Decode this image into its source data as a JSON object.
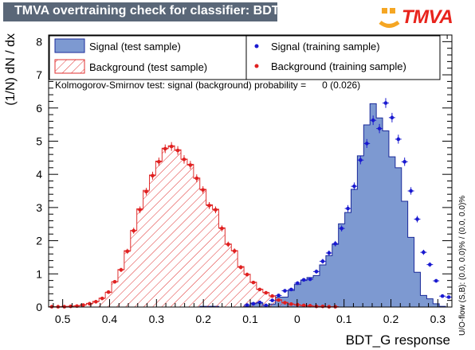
{
  "title": "TMVA overtraining check for classifier: BDT_G",
  "logo_text": "TMVA",
  "ks_text": "Kolmogorov-Smirnov test: signal (background) probability =      0 (0.026)",
  "overflow_text": "U/O-flow (S,B): (0.0, 0.0)% / (0.0, 0.0)%",
  "chart_data": {
    "type": "histogram",
    "xlabel": "BDT_G response",
    "ylabel": "(1/N) dN / dx",
    "xlim": [
      -0.53,
      0.33
    ],
    "ylim": [
      0,
      8.2
    ],
    "x_ticks": [
      -0.5,
      -0.4,
      -0.3,
      -0.2,
      -0.1,
      0,
      0.1,
      0.2,
      0.3
    ],
    "x_tick_labels": [
      "0.5",
      "0.4",
      "0.3",
      "0.2",
      "0.1",
      "0",
      "0.1",
      "0.2",
      "0.3"
    ],
    "y_ticks": [
      0,
      1,
      2,
      3,
      4,
      5,
      6,
      7,
      8
    ],
    "y_tick_labels": [
      "0",
      "1",
      "2",
      "3",
      "4",
      "5",
      "6",
      "7",
      "8"
    ],
    "bin_edges": [
      -0.53,
      -0.5166,
      -0.5031,
      -0.4897,
      -0.4763,
      -0.4628,
      -0.4494,
      -0.4359,
      -0.4225,
      -0.4091,
      -0.3956,
      -0.3822,
      -0.3688,
      -0.3553,
      -0.3419,
      -0.3284,
      -0.315,
      -0.3016,
      -0.2881,
      -0.2747,
      -0.2613,
      -0.2478,
      -0.2344,
      -0.2209,
      -0.2075,
      -0.1941,
      -0.1806,
      -0.1672,
      -0.1538,
      -0.1403,
      -0.1269,
      -0.1134,
      -0.1,
      -0.0866,
      -0.0731,
      -0.0597,
      -0.0463,
      -0.0328,
      -0.0194,
      -0.0059,
      0.0075,
      0.0209,
      0.0344,
      0.0478,
      0.0613,
      0.0747,
      0.0881,
      0.1016,
      0.115,
      0.1284,
      0.1419,
      0.1553,
      0.1688,
      0.1822,
      0.1956,
      0.2091,
      0.2225,
      0.2359,
      0.2494,
      0.2628,
      0.2763,
      0.2897,
      0.3031,
      0.3166,
      0.33
    ],
    "series": [
      {
        "name": "Signal (test sample)",
        "style": "filled",
        "color": "#7d99d1",
        "edge": "#1a2a9a",
        "values": [
          0,
          0,
          0,
          0,
          0,
          0,
          0,
          0,
          0,
          0,
          0,
          0,
          0,
          0,
          0,
          0,
          0,
          0,
          0,
          0,
          0,
          0,
          0,
          0,
          0.02,
          0.02,
          0.02,
          0,
          0,
          0,
          0,
          0.02,
          0.12,
          0.12,
          0.05,
          0.09,
          0.3,
          0.3,
          0.5,
          0.68,
          0.8,
          0.89,
          0.95,
          1.27,
          1.55,
          1.89,
          2.51,
          2.85,
          3.55,
          4.56,
          5.49,
          6.13,
          5.7,
          5.31,
          4.53,
          4.2,
          3.19,
          2.1,
          1.05,
          0.35,
          0.25,
          0.1,
          0.02,
          0
        ]
      },
      {
        "name": "Background (test sample)",
        "style": "hatched",
        "color": "#e03030",
        "values": [
          0.01,
          0.01,
          0.02,
          0.02,
          0.04,
          0.07,
          0.11,
          0.17,
          0.27,
          0.44,
          0.76,
          1.13,
          1.7,
          2.31,
          2.96,
          3.52,
          3.98,
          4.4,
          4.79,
          4.86,
          4.74,
          4.46,
          4.3,
          3.89,
          3.55,
          3.08,
          2.95,
          2.39,
          1.9,
          1.7,
          1.22,
          0.99,
          0.75,
          0.54,
          0.44,
          0.34,
          0.22,
          0.14,
          0.09,
          0.06,
          0.04,
          0.03,
          0.02,
          0.02,
          0.01,
          0.01,
          0,
          0,
          0,
          0,
          0,
          0,
          0,
          0,
          0,
          0,
          0,
          0,
          0,
          0,
          0,
          0,
          0,
          0
        ]
      },
      {
        "name": "Signal (training sample)",
        "style": "points",
        "color": "#1a1ad0",
        "values": [
          0,
          0,
          0,
          0,
          0,
          0,
          0,
          0,
          0,
          0,
          0,
          0,
          0,
          0,
          0,
          0,
          0,
          0,
          0,
          0,
          0,
          0,
          0,
          0,
          0,
          0,
          0,
          0,
          0,
          0,
          0,
          0.06,
          0.1,
          0.14,
          0.05,
          0.2,
          0.35,
          0.49,
          0.53,
          0.72,
          0.82,
          0.84,
          1.07,
          1.38,
          1.63,
          1.91,
          2.37,
          2.97,
          3.64,
          4.43,
          4.93,
          5.63,
          5.38,
          6.15,
          5.71,
          5.06,
          4.38,
          3.5,
          2.65,
          1.65,
          1.28,
          0.79,
          0.33,
          0.3
        ]
      },
      {
        "name": "Background (training sample)",
        "style": "points",
        "color": "#e02020",
        "values": [
          0.01,
          0.01,
          0.01,
          0.02,
          0.03,
          0.06,
          0.1,
          0.16,
          0.26,
          0.45,
          0.76,
          1.12,
          1.68,
          2.3,
          2.93,
          3.48,
          3.96,
          4.38,
          4.77,
          4.84,
          4.72,
          4.45,
          4.28,
          3.88,
          3.53,
          3.06,
          2.93,
          2.37,
          1.89,
          1.69,
          1.2,
          0.98,
          0.74,
          0.53,
          0.43,
          0.33,
          0.21,
          0.13,
          0.09,
          0.07,
          0.05,
          0.04,
          0.02,
          0.02,
          0.01,
          0.01,
          0,
          0,
          0,
          0,
          0,
          0,
          0,
          0,
          0,
          0,
          0,
          0,
          0,
          0,
          0,
          0,
          0,
          0
        ]
      }
    ],
    "legend": [
      {
        "label": "Signal (test sample)",
        "style": "filled"
      },
      {
        "label": "Background (test sample)",
        "style": "hatched"
      },
      {
        "label": "Signal (training sample)",
        "style": "points"
      },
      {
        "label": "Background (training sample)",
        "style": "points"
      }
    ],
    "legend_position": "top",
    "grid": false
  }
}
